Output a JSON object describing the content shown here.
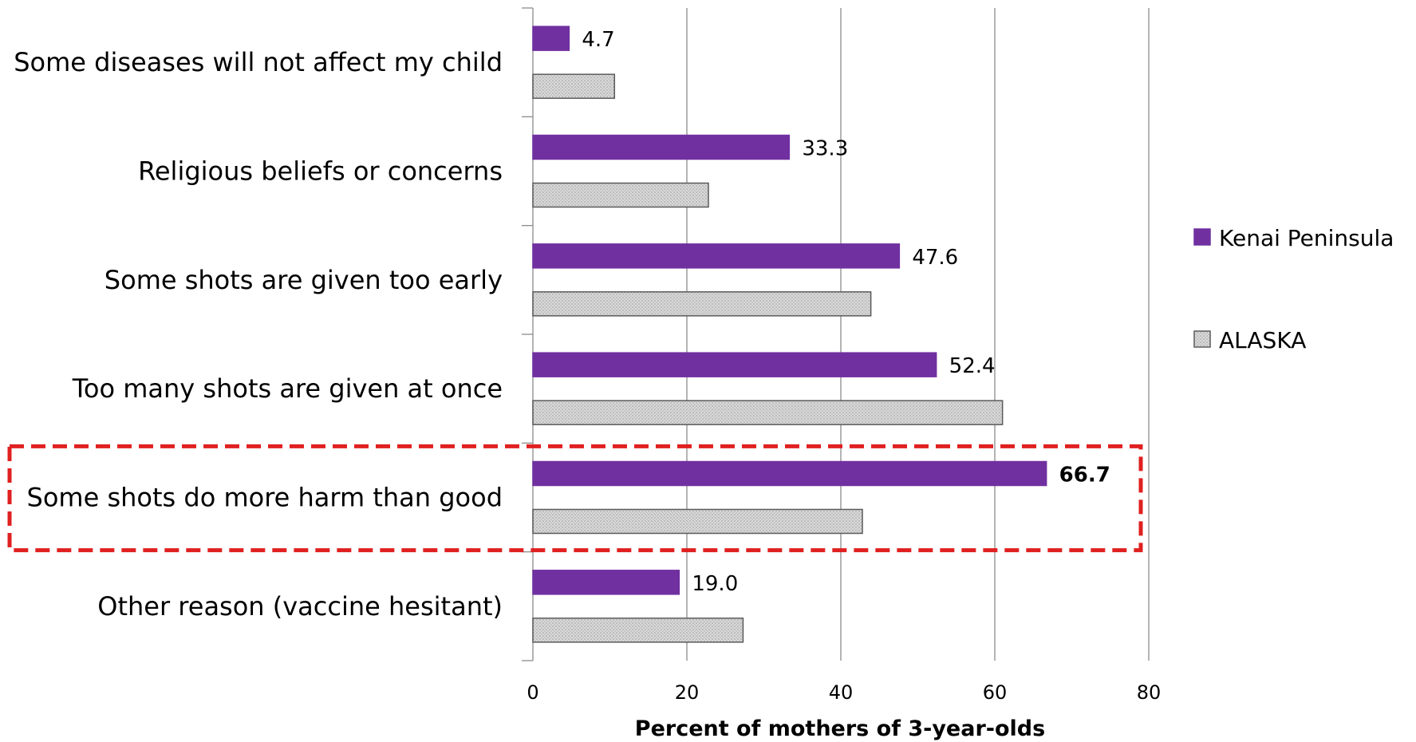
{
  "chart_data": {
    "type": "bar",
    "orientation": "horizontal",
    "categories": [
      "Some diseases will not affect my child",
      "Religious beliefs or concerns",
      "Some shots are given too early",
      "Too many shots are given at once",
      "Some shots do more harm than good",
      "Other reason (vaccine hesitant)"
    ],
    "series": [
      {
        "name": "Kenai Peninsula",
        "values": [
          4.7,
          33.3,
          47.6,
          52.4,
          66.7,
          19.0
        ],
        "labels": [
          "4.7",
          "33.3",
          "47.6",
          "52.4",
          "66.7",
          "19.0"
        ],
        "color": "#7030a0"
      },
      {
        "name": "ALASKA",
        "values": [
          10.6,
          22.8,
          43.9,
          61.0,
          42.8,
          27.3
        ],
        "color": "#d4d4d4"
      }
    ],
    "title": "",
    "xlabel": "Percent of mothers of 3-year-olds",
    "ylabel": "",
    "xlim": [
      0,
      80
    ],
    "xticks": [
      0,
      20,
      40,
      60,
      80
    ],
    "grid": "vertical",
    "legend": "right",
    "highlight": {
      "category": "Some shots do more harm than good",
      "style": "red dashed box",
      "color": "#e02020",
      "bold_label": "66.7"
    }
  }
}
